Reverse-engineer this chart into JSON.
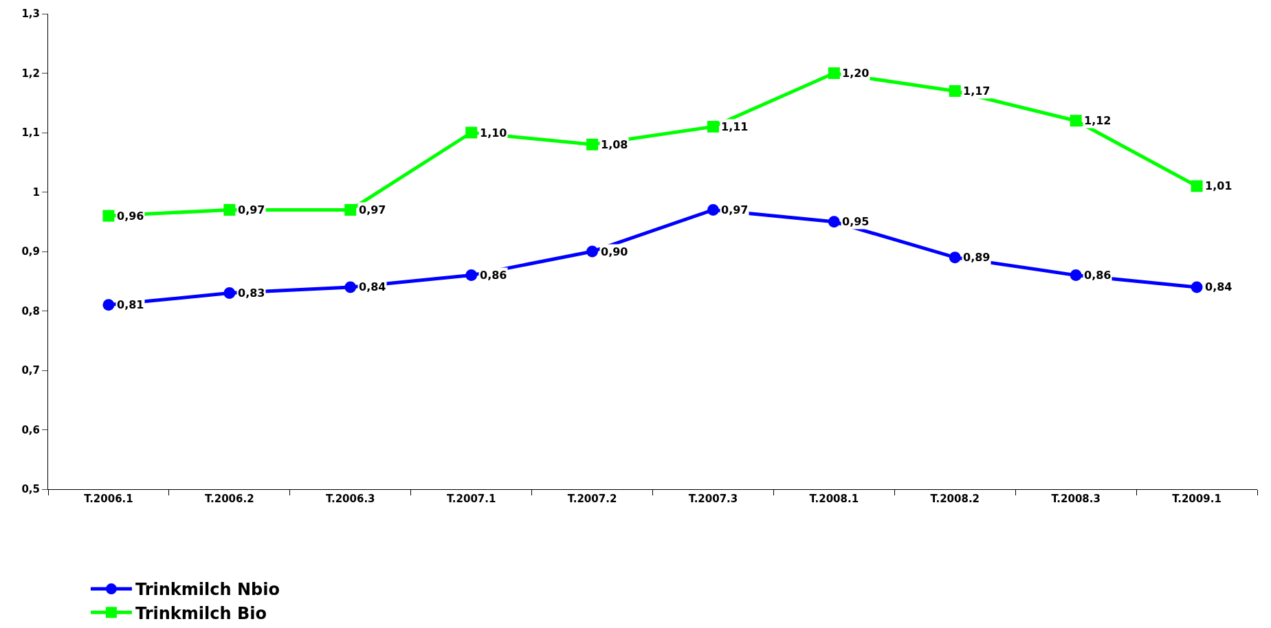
{
  "chart_data": {
    "type": "line",
    "categories": [
      "T.2006.1",
      "T.2006.2",
      "T.2006.3",
      "T.2007.1",
      "T.2007.2",
      "T.2007.3",
      "T.2008.1",
      "T.2008.2",
      "T.2008.3",
      "T.2009.1"
    ],
    "series": [
      {
        "name": "Trinkmilch Nbio",
        "color": "#0000ff",
        "marker": "circle",
        "values": [
          0.81,
          0.83,
          0.84,
          0.86,
          0.9,
          0.97,
          0.95,
          0.89,
          0.86,
          0.84
        ],
        "value_labels": [
          "0,81",
          "0,83",
          "0,84",
          "0,86",
          "0,90",
          "0,97",
          "0,95",
          "0,89",
          "0,86",
          "0,84"
        ]
      },
      {
        "name": "Trinkmilch Bio",
        "color": "#00ff00",
        "marker": "square",
        "values": [
          0.96,
          0.97,
          0.97,
          1.1,
          1.08,
          1.11,
          1.2,
          1.17,
          1.12,
          1.01
        ],
        "value_labels": [
          "0,96",
          "0,97",
          "0,97",
          "1,10",
          "1,08",
          "1,11",
          "1,20",
          "1,17",
          "1,12",
          "1,01"
        ]
      }
    ],
    "ylim": [
      0.5,
      1.3
    ],
    "yticks": [
      {
        "value": 0.5,
        "label": "0,5"
      },
      {
        "value": 0.6,
        "label": "0,6"
      },
      {
        "value": 0.7,
        "label": "0,7"
      },
      {
        "value": 0.8,
        "label": "0,8"
      },
      {
        "value": 0.9,
        "label": "0,9"
      },
      1,
      {
        "value": 1.1,
        "label": "1,1"
      },
      {
        "value": 1.2,
        "label": "1,2"
      },
      {
        "value": 1.3,
        "label": "1,3"
      }
    ],
    "legend": "bottom",
    "line_style": "solid"
  }
}
